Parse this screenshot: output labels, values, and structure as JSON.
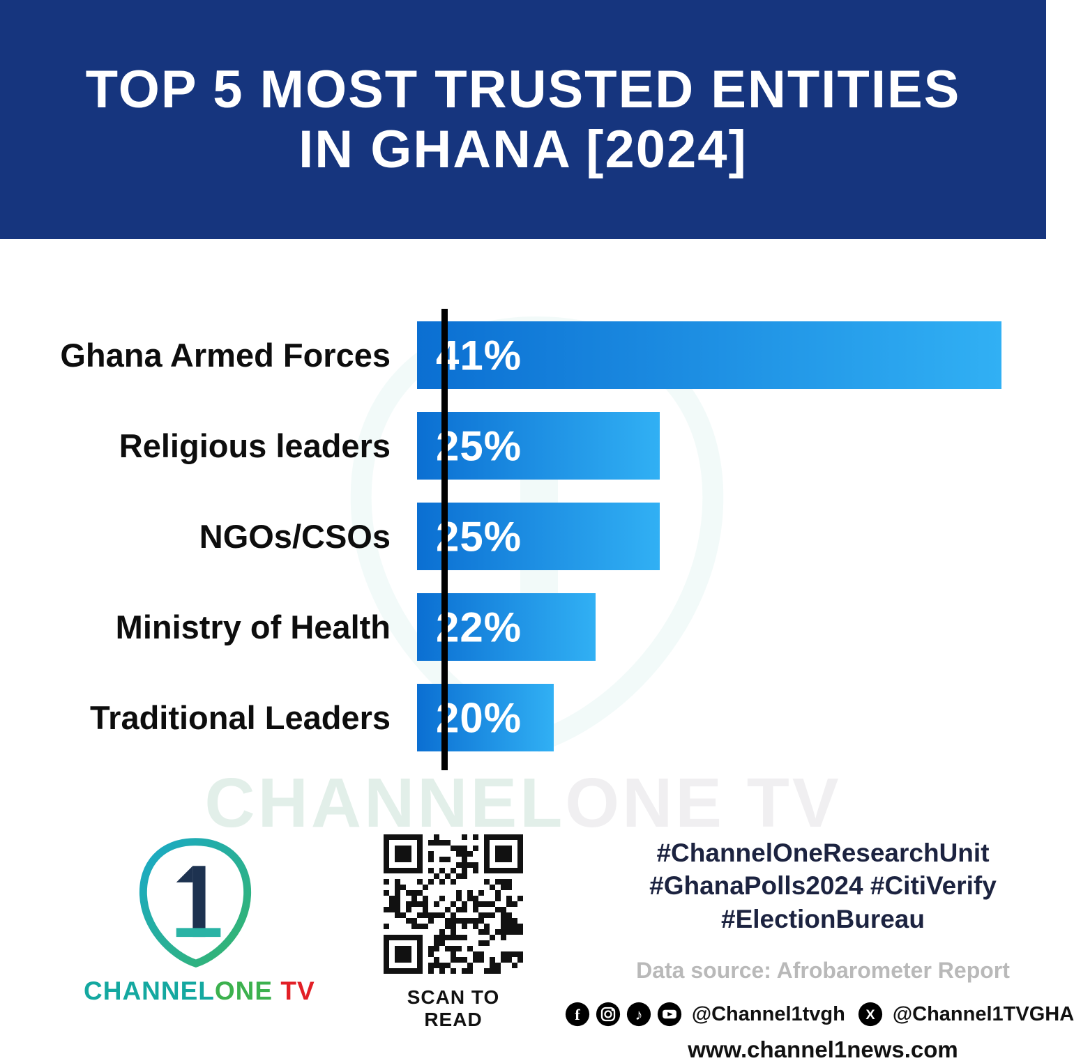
{
  "header": {
    "title_line1": "TOP 5 MOST TRUSTED ENTITIES",
    "title_line2": "IN GHANA [2024]",
    "bg_color": "#16357e"
  },
  "chart_data": {
    "type": "bar",
    "orientation": "horizontal",
    "title": "TOP 5 MOST TRUSTED ENTITIES IN GHANA [2024]",
    "categories": [
      "Ghana Armed Forces",
      "Religious leaders",
      "NGOs/CSOs",
      "Ministry of Health",
      "Traditional Leaders"
    ],
    "values": [
      41,
      25,
      25,
      22,
      20
    ],
    "value_labels": [
      "41%",
      "25%",
      "25%",
      "22%",
      "20%"
    ],
    "display_width_pct": [
      97.2,
      40.4,
      40.4,
      29.7,
      22.7
    ],
    "bar_gradient": [
      "#0b6fd2",
      "#31b0f4"
    ],
    "grid": false,
    "legend": false,
    "unit": "%"
  },
  "watermark": {
    "part1": "CHANNEL",
    "part2": "ONE TV"
  },
  "footer": {
    "logo_number": "1",
    "logo_channel": "CHANNEL",
    "logo_one": "ONE",
    "logo_tv": " TV",
    "qr_caption": "SCAN TO READ",
    "hashtags": [
      "#ChannelOneResearchUnit",
      "#GhanaPolls2024 #CitiVerify",
      "#ElectionBureau"
    ],
    "data_source": "Data source: Afrobarometer Report",
    "social_handle_1": "@Channel1tvgh",
    "social_handle_2": "@Channel1TVGHA",
    "website": "www.channel1news.com",
    "colors": {
      "teal": "#14a8a0",
      "green": "#3cb14e",
      "red": "#e21f26"
    }
  }
}
